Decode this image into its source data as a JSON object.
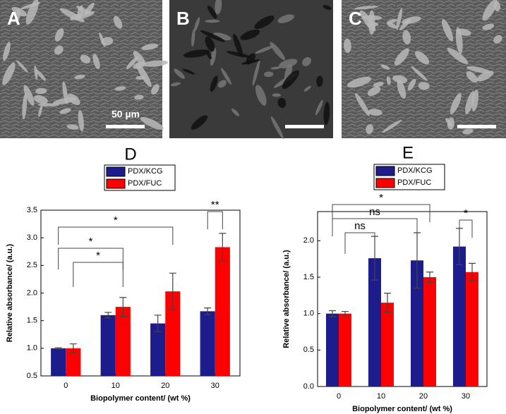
{
  "panels": [
    {
      "label": "A"
    },
    {
      "label": "B"
    },
    {
      "label": "C"
    }
  ],
  "scale_bar": "50 µm",
  "chart_data": [
    {
      "type": "bar",
      "title": "D",
      "x_label": "Biopolymer content/ (wt %)",
      "y_label": "Relative absorbance/ (a.u.)",
      "categories": [
        "0",
        "10",
        "20",
        "30"
      ],
      "series": [
        {
          "name": "PDX/KCG",
          "color": "#1c1c8c",
          "values": [
            1.0,
            1.6,
            1.45,
            1.67
          ],
          "errors": [
            0.01,
            0.05,
            0.15,
            0.06
          ]
        },
        {
          "name": "PDX/FUC",
          "color": "#ff0000",
          "values": [
            1.0,
            1.75,
            2.03,
            2.83
          ],
          "errors": [
            0.08,
            0.17,
            0.33,
            0.25
          ]
        }
      ],
      "ylim": [
        0.5,
        3.5
      ],
      "yticks": [
        {
          "value": 0.5,
          "label": "0.5"
        },
        {
          "value": 1,
          "label": "1.0"
        },
        {
          "value": 1.5,
          "label": "1.5"
        },
        {
          "value": 2,
          "label": "2.0"
        },
        {
          "value": 2.5,
          "label": "2.5"
        },
        {
          "value": 3,
          "label": "3.0"
        },
        {
          "value": 3.5,
          "label": "3.5"
        }
      ],
      "annotations": [
        {
          "text": "*"
        },
        {
          "text": "*"
        },
        {
          "text": "*"
        },
        {
          "text": "**"
        }
      ]
    },
    {
      "type": "bar",
      "title": "E",
      "x_label": "Biopolymer content/ (wt %)",
      "y_label": "Relative absorbance/ (a.u.)",
      "categories": [
        "0",
        "10",
        "20",
        "30"
      ],
      "series": [
        {
          "name": "PDX/KCG",
          "color": "#1c1c8c",
          "values": [
            1.0,
            1.76,
            1.73,
            1.92
          ],
          "errors": [
            0.04,
            0.3,
            0.38,
            0.25
          ]
        },
        {
          "name": "PDX/FUC",
          "color": "#ff0000",
          "values": [
            1.0,
            1.15,
            1.5,
            1.57
          ],
          "errors": [
            0.03,
            0.13,
            0.07,
            0.12
          ]
        }
      ],
      "ylim": [
        0,
        2.4
      ],
      "yticks": [
        {
          "value": 0,
          "label": "0.0"
        },
        {
          "value": 0.5,
          "label": "0.5"
        },
        {
          "value": 1,
          "label": "1.0"
        },
        {
          "value": 1.5,
          "label": "1.5"
        },
        {
          "value": 2,
          "label": "2.0"
        }
      ],
      "annotations": [
        {
          "text": "*"
        },
        {
          "text": "ns"
        },
        {
          "text": "ns"
        },
        {
          "text": "*"
        }
      ]
    }
  ]
}
